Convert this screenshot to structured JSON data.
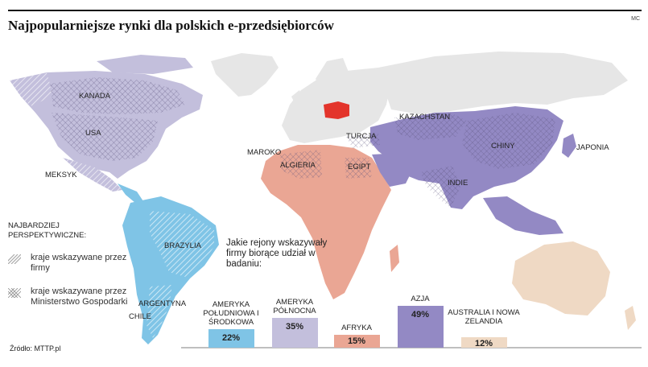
{
  "title": "Najpopularniejsze rynki dla polskich e-przedsiębiorców",
  "author_mark": "MC",
  "source": "Źródło: MTTP.pl",
  "question": "Jakie rejony wskazywały firmy biorące udział w badaniu:",
  "legend": {
    "heading": "NAJBARDZIEJ PERSPEKTYWICZNE:",
    "items": [
      {
        "label": "kraje wskazywane przez firmy",
        "pattern": "diagonal-hatch"
      },
      {
        "label": "kraje wskazywane przez Ministerstwo Gospodarki",
        "pattern": "cross-hatch"
      }
    ]
  },
  "map_labels": [
    "KANADA",
    "USA",
    "MEKSYK",
    "BRAZYLIA",
    "ARGENTYNA",
    "CHILE",
    "MAROKO",
    "ALGIERIA",
    "EGIPT",
    "TURCJA",
    "KAZACHSTAN",
    "CHINY",
    "INDIE",
    "JAPONIA"
  ],
  "chart_data": {
    "type": "bar",
    "categories": [
      "AMERYKA POŁUDNIOWA I ŚRODKOWA",
      "AMERYKA PÓŁNOCNA",
      "AFRYKA",
      "AZJA",
      "AUSTRALIA I NOWA ZELANDIA"
    ],
    "values": [
      22,
      35,
      15,
      49,
      12
    ],
    "value_labels": [
      "22%",
      "35%",
      "15%",
      "49%",
      "12%"
    ],
    "colors": [
      "#7fc4e6",
      "#c3bfdc",
      "#eaa694",
      "#9389c4",
      "#efd9c4"
    ],
    "ylim": [
      0,
      50
    ]
  },
  "colors": {
    "poland": "#e3342b",
    "other_land": "#e6e6e6",
    "north_america": "#c3bfdc",
    "south_america": "#7fc4e6",
    "africa": "#eaa694",
    "asia": "#9389c4",
    "australia": "#efd9c4"
  }
}
